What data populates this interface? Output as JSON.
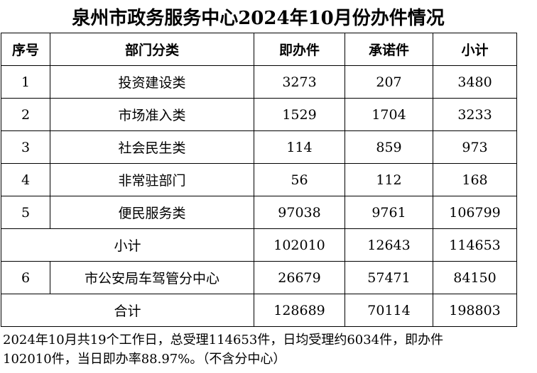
{
  "title": "泉州市政务服务中心2024年10月份办件情况",
  "headers": [
    "序号",
    "部门分类",
    "即办件",
    "承诺件",
    "小计"
  ],
  "rows": [
    {
      "no": "1",
      "category": "投资建设类",
      "instant": "3273",
      "promised": "207",
      "subtotal": "3480"
    },
    {
      "no": "2",
      "category": "市场准入类",
      "instant": "1529",
      "promised": "1704",
      "subtotal": "3233"
    },
    {
      "no": "3",
      "category": "社会民生类",
      "instant": "114",
      "promised": "859",
      "subtotal": "973"
    },
    {
      "no": "4",
      "category": "非常驻部门",
      "instant": "56",
      "promised": "112",
      "subtotal": "168"
    },
    {
      "no": "5",
      "category": "便民服务类",
      "instant": "97038",
      "promised": "9761",
      "subtotal": "106799"
    }
  ],
  "subtotal_row": {
    "label": "小计",
    "instant": "102010",
    "promised": "12643",
    "subtotal": "114653"
  },
  "row6": {
    "no": "6",
    "category": "市公安局车驾管分中心",
    "instant": "26679",
    "promised": "57471",
    "subtotal": "84150"
  },
  "total_row": {
    "label": "合计",
    "instant": "128689",
    "promised": "70114",
    "subtotal": "198803"
  },
  "note": {
    "line1": "2024年10月共19个工作日，总受理114653件，日均受理约6034件，即办件",
    "line2": "102010件，当日即办率88.97%。（不含分中心）"
  }
}
